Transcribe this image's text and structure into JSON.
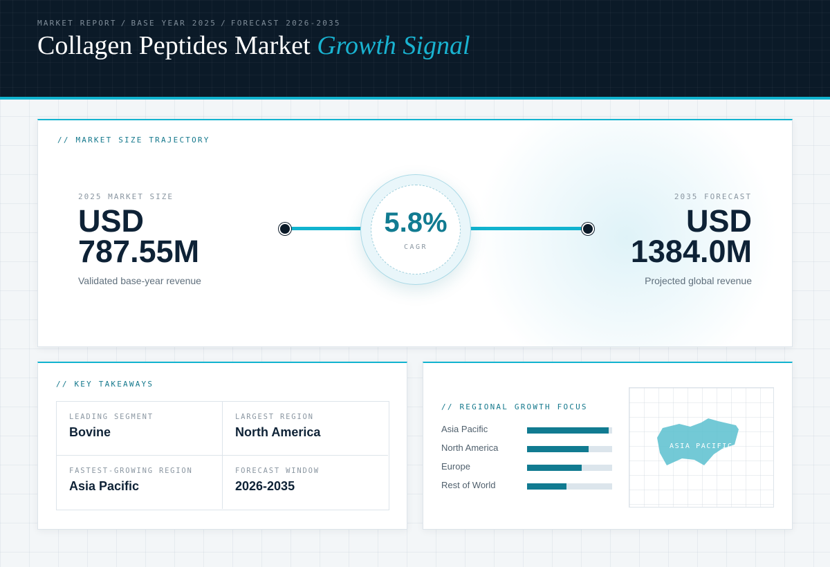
{
  "header": {
    "breadcrumb": [
      "MARKET REPORT",
      "BASE YEAR 2025",
      "FORECAST 2026-2035"
    ],
    "separator": "/",
    "title": "Collagen Peptides Market",
    "title_accent": "Growth Signal"
  },
  "trajectory": {
    "label": "// MARKET SIZE TRAJECTORY",
    "start": {
      "label": "2025 MARKET SIZE",
      "value_line1": "USD",
      "value_line2": "787.55M",
      "caption": "Validated base-year revenue"
    },
    "cagr": {
      "value": "5.8%",
      "label": "CAGR"
    },
    "end": {
      "label": "2035 FORECAST",
      "value_line1": "USD",
      "value_line2": "1384.0M",
      "caption": "Projected global revenue"
    }
  },
  "takeaways": {
    "label": "// KEY TAKEAWAYS",
    "items": [
      {
        "label": "LEADING SEGMENT",
        "value": "Bovine"
      },
      {
        "label": "LARGEST REGION",
        "value": "North America"
      },
      {
        "label": "FASTEST-GROWING REGION",
        "value": "Asia Pacific"
      },
      {
        "label": "FORECAST WINDOW",
        "value": "2026-2035"
      }
    ]
  },
  "regional": {
    "label": "// REGIONAL GROWTH FOCUS",
    "bars": [
      {
        "name": "Asia Pacific",
        "level": 0.96
      },
      {
        "name": "North America",
        "level": 0.72
      },
      {
        "name": "Europe",
        "level": 0.64
      },
      {
        "name": "Rest of World",
        "level": 0.46
      }
    ],
    "map_label": "ASIA PACIFIC"
  },
  "colors": {
    "accent": "#11b3cf",
    "bar_fill": "#117b91",
    "bar_track": "#dce5ec",
    "header_bg": "#0b1a28",
    "map_fill": "#5bbfcf"
  }
}
